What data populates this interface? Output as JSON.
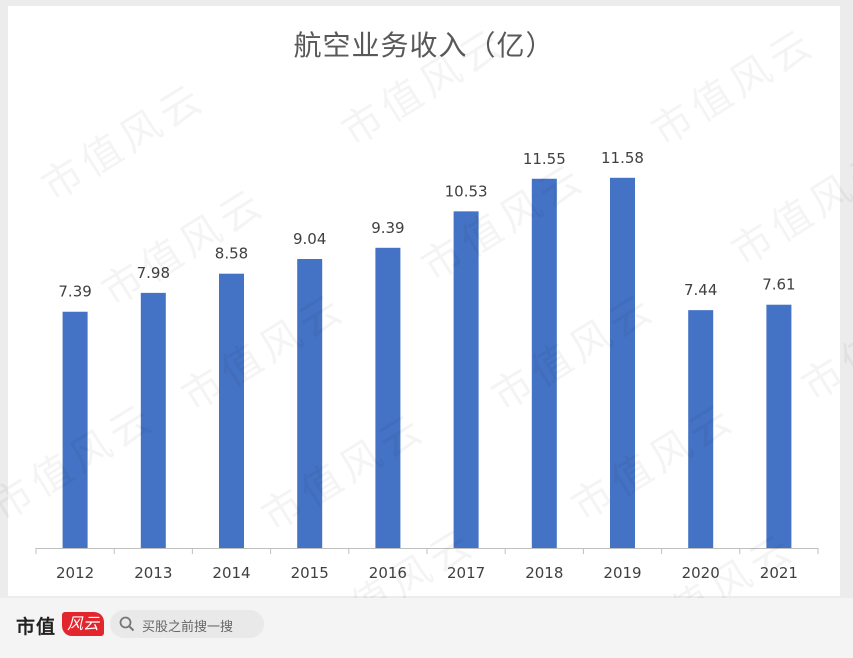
{
  "chart_data": {
    "type": "bar",
    "title": "航空业务收入（亿）",
    "categories": [
      "2012",
      "2013",
      "2014",
      "2015",
      "2016",
      "2017",
      "2018",
      "2019",
      "2020",
      "2021"
    ],
    "values": [
      7.39,
      7.98,
      8.58,
      9.04,
      9.39,
      10.53,
      11.55,
      11.58,
      7.44,
      7.61
    ],
    "value_labels": [
      "7.39",
      "7.98",
      "8.58",
      "9.04",
      "9.39",
      "10.53",
      "11.55",
      "11.58",
      "7.44",
      "7.61"
    ],
    "ylim": [
      0,
      13.2
    ],
    "xlabel": "",
    "ylabel": "",
    "grid": false,
    "bar_color": "#4472c4"
  },
  "footer": {
    "brand": "市值",
    "brand_badge": "风云",
    "search_placeholder": "买股之前搜一搜"
  },
  "watermark_text": "市值风云"
}
